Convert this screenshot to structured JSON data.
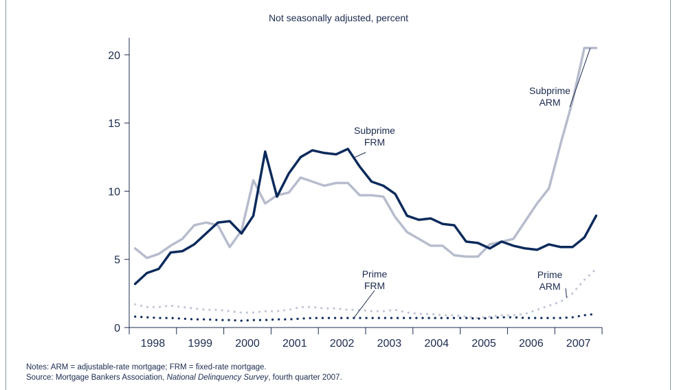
{
  "subtitle": "Not seasonally adjusted, percent",
  "notes": {
    "line1": "Notes: ARM = adjustable-rate mortgage; FRM = fixed-rate mortgage.",
    "source_prefix": "Source: Mortgage Bankers Association, ",
    "source_title": "National Delinquency Survey",
    "source_suffix": ", fourth quarter 2007."
  },
  "colors": {
    "subprime_frm": "#0b2a5c",
    "subprime_arm": "#b7bccd",
    "prime_frm": "#0b2a5c",
    "prime_arm": "#c3c6d6",
    "axis": "#1b2a4e"
  },
  "chart_data": {
    "type": "line",
    "title": "",
    "xlabel": "",
    "ylabel": "",
    "ylim": [
      0,
      21
    ],
    "yticks": [
      0,
      5,
      10,
      15,
      20
    ],
    "grid": false,
    "x_years": [
      "1998",
      "1999",
      "2000",
      "2001",
      "2002",
      "2003",
      "2004",
      "2005",
      "2006",
      "2007"
    ],
    "x": [
      "1998Q1",
      "1998Q2",
      "1998Q3",
      "1998Q4",
      "1999Q1",
      "1999Q2",
      "1999Q3",
      "1999Q4",
      "2000Q1",
      "2000Q2",
      "2000Q3",
      "2000Q4",
      "2001Q1",
      "2001Q2",
      "2001Q3",
      "2001Q4",
      "2002Q1",
      "2002Q2",
      "2002Q3",
      "2002Q4",
      "2003Q1",
      "2003Q2",
      "2003Q3",
      "2003Q4",
      "2004Q1",
      "2004Q2",
      "2004Q3",
      "2004Q4",
      "2005Q1",
      "2005Q2",
      "2005Q3",
      "2005Q4",
      "2006Q1",
      "2006Q2",
      "2006Q3",
      "2006Q4",
      "2007Q1",
      "2007Q2",
      "2007Q3",
      "2007Q4"
    ],
    "series": [
      {
        "name": "Subprime ARM",
        "label_lines": [
          "Subprime",
          "ARM"
        ],
        "style": "solid",
        "values": [
          5.8,
          5.1,
          5.4,
          6.0,
          6.5,
          7.5,
          7.7,
          7.5,
          5.9,
          7.1,
          10.8,
          9.1,
          9.7,
          9.9,
          11.0,
          10.7,
          10.4,
          10.6,
          10.6,
          9.7,
          9.7,
          9.6,
          8.1,
          7.0,
          6.5,
          6.0,
          6.0,
          5.3,
          5.2,
          5.2,
          6.1,
          6.3,
          6.5,
          7.8,
          9.1,
          10.2,
          13.5,
          16.6,
          20.5,
          20.5
        ]
      },
      {
        "name": "Subprime FRM",
        "label_lines": [
          "Subprime",
          "FRM"
        ],
        "style": "solid",
        "values": [
          3.2,
          4.0,
          4.3,
          5.5,
          5.6,
          6.1,
          6.9,
          7.7,
          7.8,
          6.9,
          8.2,
          12.9,
          9.6,
          11.3,
          12.5,
          13.0,
          12.8,
          12.7,
          13.1,
          11.8,
          10.7,
          10.4,
          9.8,
          8.2,
          7.9,
          8.0,
          7.6,
          7.5,
          6.3,
          6.2,
          5.8,
          6.3,
          6.0,
          5.8,
          5.7,
          6.1,
          5.9,
          5.9,
          6.6,
          8.2
        ]
      },
      {
        "name": "Prime ARM",
        "label_lines": [
          "Prime",
          "ARM"
        ],
        "style": "dotted",
        "values": [
          1.7,
          1.5,
          1.5,
          1.6,
          1.5,
          1.4,
          1.3,
          1.3,
          1.2,
          1.1,
          1.1,
          1.2,
          1.2,
          1.3,
          1.5,
          1.5,
          1.4,
          1.4,
          1.3,
          1.3,
          1.2,
          1.2,
          1.3,
          1.1,
          1.0,
          1.0,
          0.9,
          0.9,
          0.8,
          0.7,
          0.8,
          0.9,
          0.9,
          1.0,
          1.3,
          1.6,
          1.9,
          2.5,
          3.5,
          4.3
        ]
      },
      {
        "name": "Prime FRM",
        "label_lines": [
          "Prime",
          "FRM"
        ],
        "style": "dotted",
        "values": [
          0.8,
          0.75,
          0.7,
          0.7,
          0.65,
          0.6,
          0.6,
          0.55,
          0.55,
          0.5,
          0.55,
          0.55,
          0.6,
          0.6,
          0.65,
          0.7,
          0.7,
          0.7,
          0.7,
          0.7,
          0.7,
          0.7,
          0.7,
          0.7,
          0.7,
          0.7,
          0.7,
          0.7,
          0.7,
          0.65,
          0.7,
          0.75,
          0.75,
          0.7,
          0.7,
          0.7,
          0.7,
          0.75,
          0.9,
          1.0
        ]
      }
    ]
  }
}
